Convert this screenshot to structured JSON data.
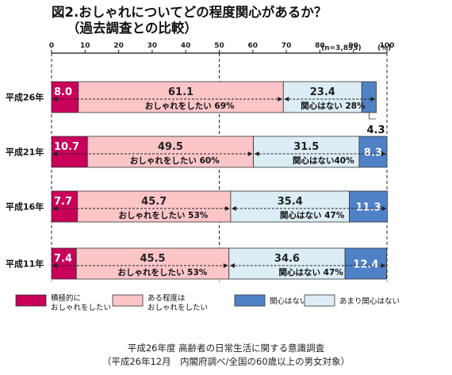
{
  "title_line1": "図2.おしゃれについてどの程度関心があるか？",
  "title_line2": "（過去調査との比較）",
  "sample_note": "(n=3,893)",
  "unit_label": "(%)",
  "source_line1": "平成26年度 高齢者の日常生活に関する意識調査",
  "source_line2": "（平成26年12月　内閣府調べ/全国の60歳以上の男女対象）",
  "chart_data": {
    "type": "bar",
    "orientation": "horizontal",
    "stacked": true,
    "xlim": [
      0,
      100
    ],
    "x_ticks": [
      "0",
      "10",
      "20",
      "30",
      "40",
      "50",
      "60",
      "70",
      "80",
      "90",
      "100"
    ],
    "categories": [
      "平成26年",
      "平成21年",
      "平成16年",
      "平成11年"
    ],
    "series": [
      {
        "name": "積極的に\nおしゃれをしたい",
        "color": "#c8005a",
        "values": [
          8.0,
          10.7,
          7.7,
          7.4
        ],
        "labels": [
          "8.0",
          "10.7",
          "7.7",
          "7.4"
        ]
      },
      {
        "name": "ある程度は\nおしゃれをしたい",
        "color": "#fcc5c8",
        "values": [
          61.1,
          49.5,
          45.7,
          45.5
        ],
        "labels": [
          "61.1",
          "49.5",
          "45.7",
          "45.5"
        ]
      },
      {
        "name": "あまり関心はない",
        "color": "#dcedf5",
        "values": [
          23.4,
          31.5,
          35.4,
          34.6
        ],
        "labels": [
          "23.4",
          "31.5",
          "35.4",
          "34.6"
        ]
      },
      {
        "name": "関心はない",
        "color": "#4f81c7",
        "values": [
          4.3,
          8.3,
          11.3,
          12.4
        ],
        "labels": [
          "4.3",
          "8.3",
          "11.3",
          "12.4"
        ]
      }
    ],
    "annotations": {
      "want": [
        "おしゃれをしたい 69%",
        "おしゃれをしたい 60%",
        "おしゃれをしたい 53%",
        "おしゃれをしたい 53%"
      ],
      "not": [
        "関心はない 28%",
        "関心はない40%",
        "関心はない 47%",
        "関心はない 47%"
      ]
    },
    "legend_order": [
      0,
      1,
      3,
      2
    ]
  }
}
